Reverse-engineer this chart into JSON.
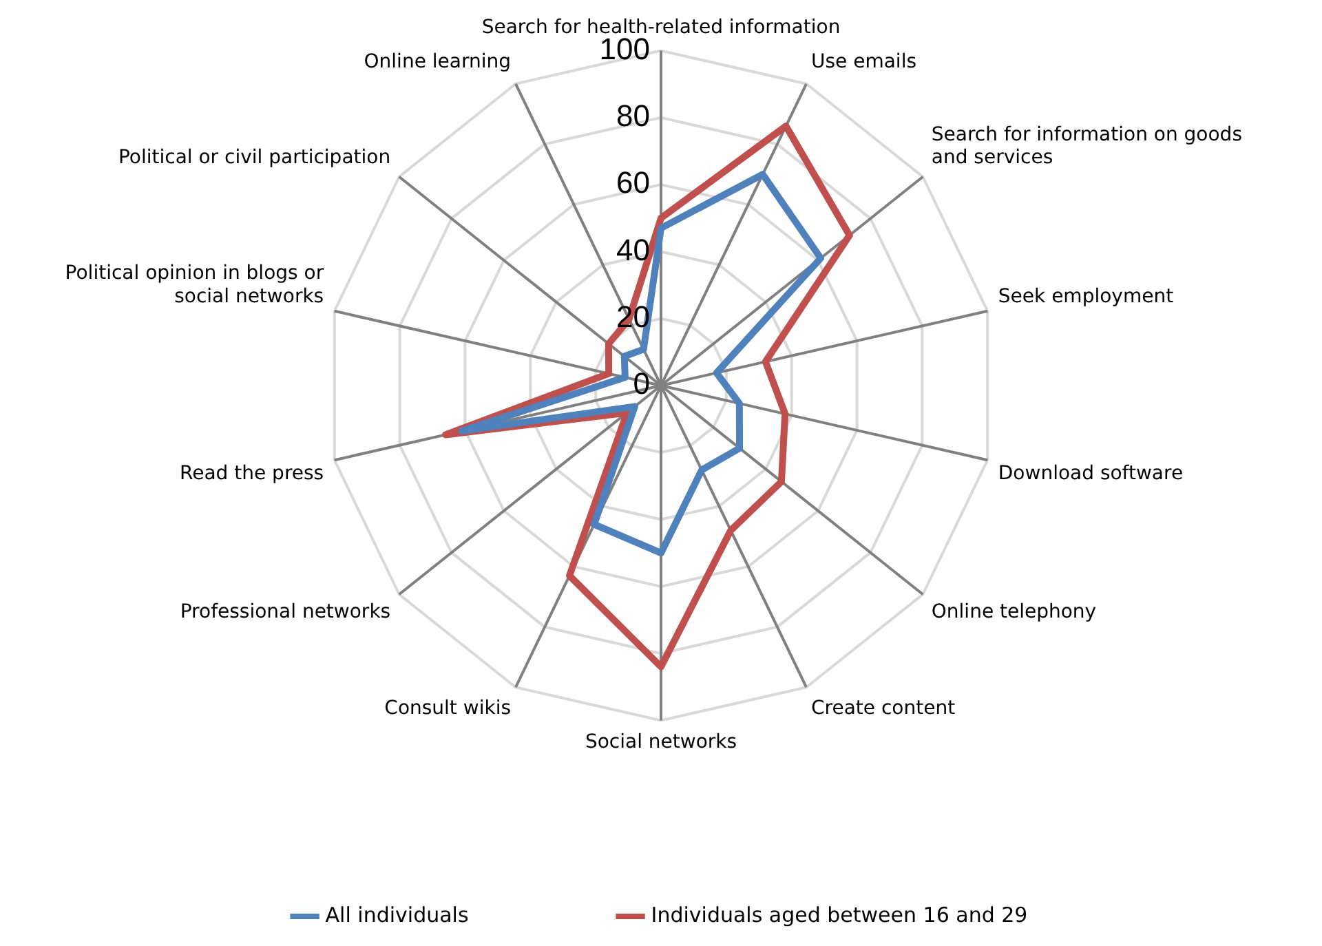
{
  "chart_data": {
    "type": "radar",
    "categories": [
      "Search for health-related information",
      "Use emails",
      "Search for information on goods and services",
      "Seek employment",
      "Download software",
      "Online telephony",
      "Create content",
      "Social networks",
      "Consult wikis",
      "Professional networks",
      "Read the press",
      "Political opinion in blogs or social networks",
      "Political or civil participation",
      "Online learning"
    ],
    "series": [
      {
        "name": "All individuals",
        "color": "#4f81bd",
        "values": [
          47,
          70,
          61,
          17,
          24,
          30,
          28,
          50,
          46,
          10,
          61,
          11,
          14,
          12
        ]
      },
      {
        "name": "Individuals aged between 16 and 29",
        "color": "#c0504d",
        "values": [
          50,
          86,
          72,
          32,
          38,
          46,
          48,
          84,
          63,
          13,
          66,
          16,
          20,
          22
        ]
      }
    ],
    "ylim": [
      0,
      100
    ],
    "yticks": [
      0,
      20,
      40,
      60,
      80,
      100
    ],
    "grid": true,
    "legend": "bottom",
    "marker": "none",
    "line_style": "solid"
  }
}
